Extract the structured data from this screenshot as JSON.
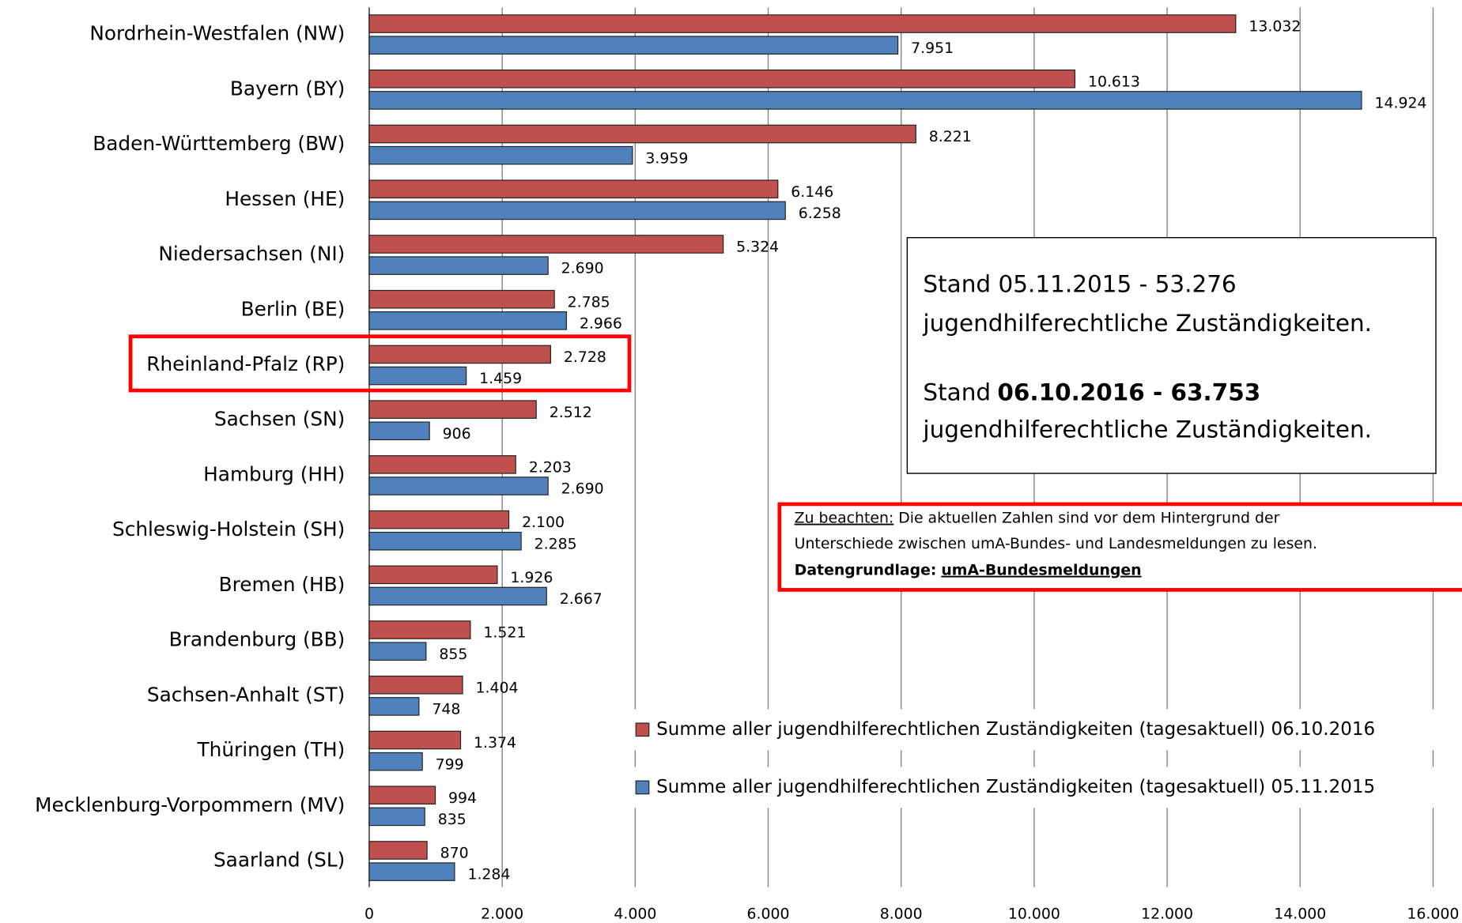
{
  "chart_data": {
    "type": "bar",
    "orientation": "horizontal",
    "categories": [
      "Nordrhein-Westfalen (NW)",
      "Bayern (BY)",
      "Baden-Württemberg (BW)",
      "Hessen (HE)",
      "Niedersachsen (NI)",
      "Berlin (BE)",
      "Rheinland-Pfalz (RP)",
      "Sachsen (SN)",
      "Hamburg (HH)",
      "Schleswig-Holstein (SH)",
      "Bremen (HB)",
      "Brandenburg (BB)",
      "Sachsen-Anhalt (ST)",
      "Thüringen (TH)",
      "Mecklenburg-Vorpommern (MV)",
      "Saarland (SL)"
    ],
    "series": [
      {
        "name": "Summe aller jugendhilferechtlichen Zuständigkeiten (tagesaktuell) 06.10.2016",
        "color": "#c0504d",
        "values": [
          13032,
          10613,
          8221,
          6146,
          5324,
          2785,
          2728,
          2512,
          2203,
          2100,
          1926,
          1521,
          1404,
          1374,
          994,
          870
        ],
        "value_labels": [
          "13.032",
          "10.613",
          "8.221",
          "6.146",
          "5.324",
          "2.785",
          "2.728",
          "2.512",
          "2.203",
          "2.100",
          "1.926",
          "1.521",
          "1.404",
          "1.374",
          "994",
          "870"
        ]
      },
      {
        "name": "Summe aller jugendhilferechtlichen Zuständigkeiten (tagesaktuell) 05.11.2015",
        "color": "#4f81bd",
        "values": [
          7951,
          14924,
          3959,
          6258,
          2690,
          2966,
          1459,
          906,
          2690,
          2285,
          2667,
          855,
          748,
          799,
          835,
          1284
        ],
        "value_labels": [
          "7.951",
          "14.924",
          "3.959",
          "6.258",
          "2.690",
          "2.966",
          "1.459",
          "906",
          "2.690",
          "2.285",
          "2.667",
          "855",
          "748",
          "799",
          "835",
          "1.284"
        ]
      }
    ],
    "xlim": [
      0,
      16000
    ],
    "xticks": [
      0,
      {
        "value": 2000,
        "label": "2.000"
      },
      {
        "value": 4000,
        "label": "4.000"
      },
      {
        "value": 6000,
        "label": "6.000"
      },
      {
        "value": 8000,
        "label": "8.000"
      },
      {
        "value": 10000,
        "label": "10.000"
      },
      {
        "value": 12000,
        "label": "12.000"
      },
      {
        "value": 14000,
        "label": "14.000"
      },
      {
        "value": 16000,
        "label": "16.000"
      }
    ],
    "grid": true,
    "legend": "right",
    "text_box": {
      "line1": "Stand 05.11.2015 - 53.276",
      "line2": "jugendhilferechtliche Zuständigkeiten.",
      "line3_prefix": "Stand",
      "line3_bold": "06.10.2016 - 63.753",
      "line4": "jugendhilferechtliche Zuständigkeiten."
    },
    "note": {
      "underlined": "Zu beachten:",
      "text1": "Die aktuellen Zahlen sind vor dem Hintergrund der",
      "text2": "Unterschiede zwischen umA-Bundes- und Landesmeldungen zu lesen.",
      "bold": "Datengrundlage:",
      "bold_underlined": "umA-Bundesmeldungen"
    }
  }
}
